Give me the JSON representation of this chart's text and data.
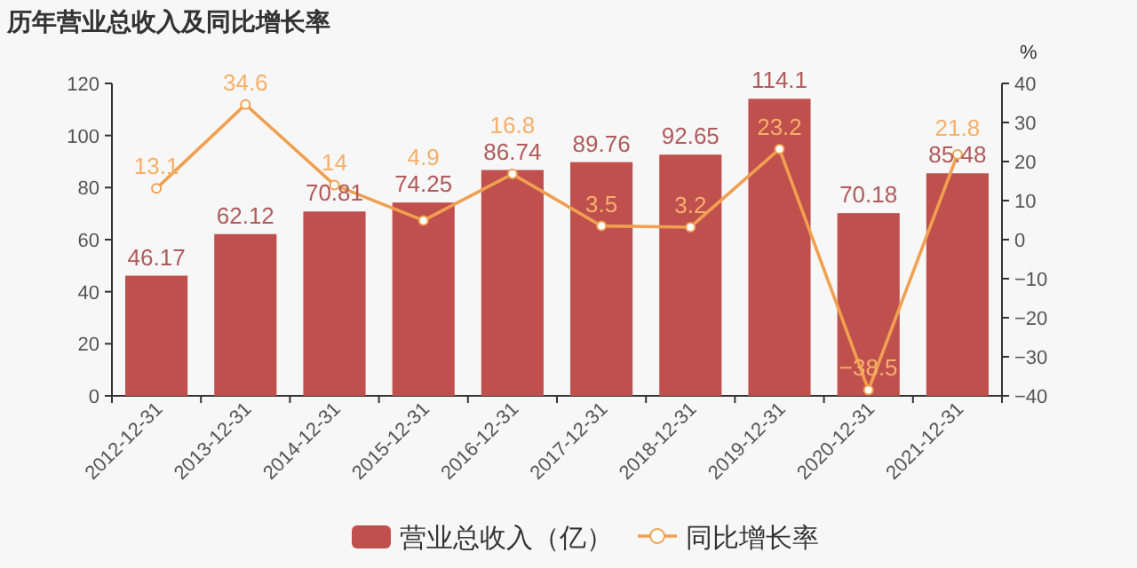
{
  "chart_data": {
    "type": "bar",
    "title": "历年营业总收入及同比增长率",
    "y2label": "%",
    "categories": [
      "2012-12-31",
      "2013-12-31",
      "2014-12-31",
      "2015-12-31",
      "2016-12-31",
      "2017-12-31",
      "2018-12-31",
      "2019-12-31",
      "2020-12-31",
      "2021-12-31"
    ],
    "series": [
      {
        "name": "营业总收入（亿）",
        "color": "#c0504d",
        "values": [
          46.17,
          62.12,
          70.81,
          74.25,
          86.74,
          89.76,
          92.65,
          114.1,
          70.18,
          85.48
        ],
        "value_labels": [
          "46.17",
          "62.12",
          "70.81",
          "74.25",
          "86.74",
          "89.76",
          "92.65",
          "114.1",
          "70.18",
          "85.48"
        ]
      },
      {
        "name": "同比增长率",
        "type": "line",
        "axis": "y2",
        "color": "#f0a050",
        "marker": "circle",
        "values": [
          13.1,
          34.6,
          14,
          4.9,
          16.8,
          3.5,
          3.2,
          23.2,
          -38.5,
          21.8
        ],
        "value_labels": [
          "13.1",
          "34.6",
          "14",
          "4.9",
          "16.8",
          "3.5",
          "3.2",
          "23.2",
          "−38.5",
          "21.8"
        ]
      }
    ],
    "ylim": [
      0,
      120
    ],
    "yticks": [
      0,
      20,
      40,
      60,
      80,
      100,
      120
    ],
    "y2lim": [
      -40,
      40
    ],
    "y2ticks": [
      -40,
      -30,
      -20,
      -10,
      0,
      10,
      20,
      30,
      40
    ],
    "grid": false,
    "legend": "bottom"
  }
}
